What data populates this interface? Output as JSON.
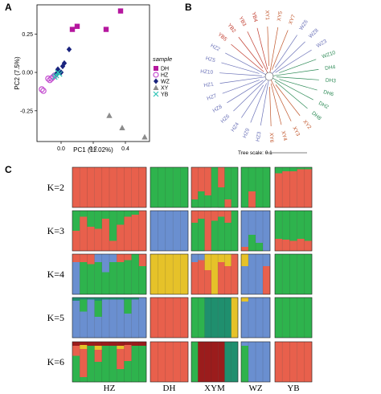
{
  "panels": {
    "a": "A",
    "b": "B",
    "c": "C"
  },
  "pca": {
    "x_axis_label": "PC1 (11.02%)",
    "y_axis_label": "PC2 (7.5%)",
    "x_ticks": [
      0.0,
      0.2,
      0.4
    ],
    "y_ticks": [
      {
        "value": 0.25,
        "label": "0.25"
      },
      {
        "value": 0.0,
        "label": "0.00"
      },
      {
        "value": -0.25,
        "label": "-0.25"
      }
    ],
    "xlim": [
      -0.15,
      0.55
    ],
    "ylim": [
      -0.45,
      0.44
    ],
    "legend_title": "sample",
    "groups": [
      {
        "name": "DH",
        "color": "#b5179e",
        "shape": "square",
        "points": [
          [
            0.37,
            0.4
          ],
          [
            0.1,
            0.3
          ],
          [
            0.07,
            0.28
          ],
          [
            0.28,
            0.28
          ]
        ]
      },
      {
        "name": "HZ",
        "color": "#c44fd0",
        "shape": "circle-open",
        "points": [
          [
            -0.12,
            -0.11
          ],
          [
            -0.06,
            -0.04
          ],
          [
            -0.05,
            -0.03
          ],
          [
            -0.07,
            -0.05
          ],
          [
            -0.04,
            -0.02
          ],
          [
            -0.08,
            -0.04
          ],
          [
            -0.11,
            -0.12
          ]
        ]
      },
      {
        "name": "WZ",
        "color": "#1a237e",
        "shape": "diamond",
        "points": [
          [
            0.05,
            0.15
          ],
          [
            0.02,
            0.06
          ],
          [
            0.01,
            0.04
          ],
          [
            -0.02,
            0.02
          ],
          [
            0.0,
            0.0
          ],
          [
            -0.03,
            -0.01
          ]
        ]
      },
      {
        "name": "XY",
        "color": "#8c8c8c",
        "shape": "triangle",
        "points": [
          [
            0.3,
            -0.28
          ],
          [
            0.38,
            -0.36
          ],
          [
            0.52,
            -0.42
          ]
        ]
      },
      {
        "name": "YB",
        "color": "#2ec4b6",
        "shape": "cross",
        "points": [
          [
            -0.03,
            -0.02
          ],
          [
            -0.02,
            0.0
          ],
          [
            -0.04,
            -0.03
          ],
          [
            -0.01,
            -0.01
          ]
        ]
      }
    ]
  },
  "tree": {
    "scale_label": "Tree scale: 0.1",
    "leaves": [
      {
        "name": "XY5",
        "color": "#c0552a"
      },
      {
        "name": "XY7",
        "color": "#c0552a"
      },
      {
        "name": "WZ6",
        "color": "#6b72b8"
      },
      {
        "name": "WZ8",
        "color": "#6b72b8"
      },
      {
        "name": "WZ3",
        "color": "#6b72b8"
      },
      {
        "name": "WZ10",
        "color": "#2e8b57"
      },
      {
        "name": "DH4",
        "color": "#2e8b57"
      },
      {
        "name": "DH3",
        "color": "#2e8b57"
      },
      {
        "name": "DH6",
        "color": "#2e8b57"
      },
      {
        "name": "DH2",
        "color": "#2e8b57"
      },
      {
        "name": "DH8",
        "color": "#2e8b57"
      },
      {
        "name": "XY2",
        "color": "#c0552a"
      },
      {
        "name": "XY3",
        "color": "#c0552a"
      },
      {
        "name": "XY4",
        "color": "#c0552a"
      },
      {
        "name": "XY6",
        "color": "#c0552a"
      },
      {
        "name": "HZ3",
        "color": "#6b72b8"
      },
      {
        "name": "HZ9",
        "color": "#6b72b8"
      },
      {
        "name": "HZ4",
        "color": "#6b72b8"
      },
      {
        "name": "HZ6",
        "color": "#6b72b8"
      },
      {
        "name": "HZ8",
        "color": "#6b72b8"
      },
      {
        "name": "HZ7",
        "color": "#6b72b8"
      },
      {
        "name": "HZ1",
        "color": "#6b72b8"
      },
      {
        "name": "HZ10",
        "color": "#6b72b8"
      },
      {
        "name": "HZ5",
        "color": "#6b72b8"
      },
      {
        "name": "HZ2",
        "color": "#6b72b8"
      },
      {
        "name": "YB5",
        "color": "#c0392b"
      },
      {
        "name": "YB2",
        "color": "#c0392b"
      },
      {
        "name": "YB3",
        "color": "#c0392b"
      },
      {
        "name": "YB4",
        "color": "#c0392b"
      },
      {
        "name": "XY1",
        "color": "#c0552a"
      }
    ]
  },
  "structure": {
    "colors": {
      "red": "#e8604c",
      "green": "#2eb34d",
      "blue": "#6a8fd0",
      "yellow": "#e6c229",
      "teal": "#1f8f6e",
      "darkred": "#9b1c1c"
    },
    "populations": [
      {
        "name": "HZ",
        "n": 10
      },
      {
        "name": "DH",
        "n": 5
      },
      {
        "name": "XYM",
        "n": 7
      },
      {
        "name": "WZ",
        "n": 4
      },
      {
        "name": "YB",
        "n": 5
      }
    ],
    "rows": [
      {
        "label": "K=2",
        "populations": [
          [
            [
              "red"
            ],
            [
              "red"
            ],
            [
              "red"
            ],
            [
              "red"
            ],
            [
              "red"
            ],
            [
              "red"
            ],
            [
              "red"
            ],
            [
              "red"
            ],
            [
              "red"
            ],
            [
              "red"
            ]
          ],
          [
            [
              "green"
            ],
            [
              "green"
            ],
            [
              "green"
            ],
            [
              "green"
            ],
            [
              "green"
            ]
          ],
          [
            [
              "red",
              0.8,
              "green",
              0.2
            ],
            [
              "red",
              0.6,
              "green",
              0.4
            ],
            [
              "red",
              0.7,
              "green",
              0.3
            ],
            [
              "green"
            ],
            [
              "red",
              0.5,
              "green",
              0.5
            ],
            [
              "green",
              0.8,
              "red",
              0.2
            ],
            [
              "green"
            ]
          ],
          [
            [
              "green"
            ],
            [
              "green",
              0.6,
              "red",
              0.4
            ],
            [
              "green"
            ],
            [
              "green"
            ]
          ],
          [
            [
              "green",
              0.15,
              "red",
              0.85
            ],
            [
              "green",
              0.1,
              "red",
              0.9
            ],
            [
              "green",
              0.1,
              "red",
              0.9
            ],
            [
              "green",
              0.05,
              "red",
              0.95
            ],
            [
              "green",
              0.05,
              "red",
              0.95
            ]
          ]
        ]
      },
      {
        "label": "K=3",
        "populations": [
          [
            [
              "green",
              0.5,
              "red",
              0.5
            ],
            [
              "green",
              0.15,
              "red",
              0.85
            ],
            [
              "green",
              0.4,
              "red",
              0.6
            ],
            [
              "green",
              0.45,
              "red",
              0.55
            ],
            [
              "green",
              0.2,
              "red",
              0.8
            ],
            [
              "green",
              0.75,
              "red",
              0.25
            ],
            [
              "green",
              0.35,
              "red",
              0.65
            ],
            [
              "green",
              0.15,
              "red",
              0.85
            ],
            [
              "green",
              0.1,
              "red",
              0.9
            ],
            [
              "red"
            ]
          ],
          [
            [
              "blue"
            ],
            [
              "blue"
            ],
            [
              "blue"
            ],
            [
              "blue"
            ],
            [
              "blue"
            ]
          ],
          [
            [
              "red",
              0.3,
              "green",
              0.7
            ],
            [
              "red",
              0.2,
              "green",
              0.8
            ],
            [
              "red"
            ],
            [
              "red",
              0.25,
              "green",
              0.75
            ],
            [
              "red",
              0.15,
              "green",
              0.85
            ],
            [
              "red",
              0.3,
              "green",
              0.7
            ],
            [
              "green"
            ]
          ],
          [
            [
              "blue",
              0.9,
              "red",
              0.1
            ],
            [
              "blue",
              0.6,
              "green",
              0.4
            ],
            [
              "blue",
              0.8,
              "green",
              0.2
            ],
            [
              "blue"
            ]
          ],
          [
            [
              "green",
              0.7,
              "red",
              0.3
            ],
            [
              "green",
              0.72,
              "red",
              0.28
            ],
            [
              "green",
              0.75,
              "red",
              0.25
            ],
            [
              "green",
              0.7,
              "red",
              0.3
            ],
            [
              "green",
              0.75,
              "red",
              0.25
            ]
          ]
        ]
      },
      {
        "label": "K=4",
        "populations": [
          [
            [
              "red",
              0.2,
              "blue",
              0.8
            ],
            [
              "red",
              0.2,
              "green",
              0.8
            ],
            [
              "red",
              0.25,
              "green",
              0.75
            ],
            [
              "blue",
              0.2,
              "green",
              0.8
            ],
            [
              "blue",
              0.45,
              "green",
              0.55
            ],
            [
              "blue",
              0.2,
              "green",
              0.8
            ],
            [
              "red",
              0.2,
              "green",
              0.8
            ],
            [
              "red",
              0.15,
              "green",
              0.85
            ],
            [
              "green"
            ],
            [
              "red",
              0.3,
              "green",
              0.7
            ]
          ],
          [
            [
              "yellow"
            ],
            [
              "yellow"
            ],
            [
              "yellow"
            ],
            [
              "yellow"
            ],
            [
              "yellow"
            ]
          ],
          [
            [
              "blue",
              0.2,
              "red",
              0.8
            ],
            [
              "blue",
              0.15,
              "red",
              0.85
            ],
            [
              "yellow",
              0.4,
              "red",
              0.6
            ],
            [
              "yellow"
            ],
            [
              "yellow",
              0.2,
              "red",
              0.8
            ],
            [
              "yellow",
              0.3,
              "red",
              0.7
            ],
            [
              "red"
            ]
          ],
          [
            [
              "yellow",
              0.3,
              "blue",
              0.7
            ],
            [
              "blue"
            ],
            [
              "blue"
            ],
            [
              "blue",
              0.3,
              "red",
              0.7
            ]
          ],
          [
            [
              "green"
            ],
            [
              "green"
            ],
            [
              "green"
            ],
            [
              "green"
            ],
            [
              "green"
            ]
          ]
        ]
      },
      {
        "label": "K=5",
        "populations": [
          [
            [
              "teal",
              0.08,
              "blue",
              0.92
            ],
            [
              "teal",
              0.05,
              "green",
              0.3,
              "blue",
              0.65
            ],
            [
              "teal",
              0.05,
              "blue",
              0.95
            ],
            [
              "teal",
              0.08,
              "green",
              0.4,
              "blue",
              0.52
            ],
            [
              "teal",
              0.05,
              "blue",
              0.95
            ],
            [
              "teal",
              0.05,
              "blue",
              0.95
            ],
            [
              "teal",
              0.05,
              "blue",
              0.95
            ],
            [
              "teal",
              0.05,
              "green",
              0.35,
              "blue",
              0.6
            ],
            [
              "teal",
              0.05,
              "blue",
              0.95
            ],
            [
              "blue"
            ]
          ],
          [
            [
              "red"
            ],
            [
              "red"
            ],
            [
              "red"
            ],
            [
              "red"
            ],
            [
              "red"
            ]
          ],
          [
            [
              "green"
            ],
            [
              "green"
            ],
            [
              "teal"
            ],
            [
              "teal"
            ],
            [
              "teal"
            ],
            [
              "teal"
            ],
            [
              "yellow"
            ]
          ],
          [
            [
              "yellow",
              0.1,
              "blue",
              0.9
            ],
            [
              "blue"
            ],
            [
              "blue"
            ],
            [
              "blue"
            ]
          ],
          [
            [
              "green"
            ],
            [
              "green"
            ],
            [
              "green"
            ],
            [
              "green"
            ],
            [
              "green"
            ]
          ]
        ]
      },
      {
        "label": "K=6",
        "populations": [
          [
            [
              "darkred",
              0.1,
              "red",
              0.25,
              "green",
              0.65
            ],
            [
              "darkred",
              0.08,
              "yellow",
              0.1,
              "red",
              0.7,
              "green",
              0.12
            ],
            [
              "darkred",
              0.1,
              "green",
              0.9
            ],
            [
              "darkred",
              0.1,
              "yellow",
              0.1,
              "red",
              0.3,
              "green",
              0.5
            ],
            [
              "darkred",
              0.1,
              "green",
              0.9
            ],
            [
              "darkred",
              0.1,
              "green",
              0.9
            ],
            [
              "darkred",
              0.1,
              "yellow",
              0.08,
              "red",
              0.5,
              "green",
              0.32
            ],
            [
              "darkred",
              0.08,
              "red",
              0.4,
              "green",
              0.52
            ],
            [
              "darkred",
              0.1,
              "green",
              0.9
            ],
            [
              "darkred",
              0.1,
              "green",
              0.9
            ]
          ],
          [
            [
              "red"
            ],
            [
              "red"
            ],
            [
              "red"
            ],
            [
              "red"
            ],
            [
              "red"
            ]
          ],
          [
            [
              "green"
            ],
            [
              "darkred"
            ],
            [
              "darkred"
            ],
            [
              "darkred"
            ],
            [
              "darkred"
            ],
            [
              "teal"
            ],
            [
              "teal"
            ]
          ],
          [
            [
              "blue",
              0.1,
              "green",
              0.9
            ],
            [
              "blue"
            ],
            [
              "blue"
            ],
            [
              "blue"
            ]
          ],
          [
            [
              "red"
            ],
            [
              "red"
            ],
            [
              "red"
            ],
            [
              "red"
            ],
            [
              "red"
            ]
          ]
        ]
      }
    ]
  }
}
